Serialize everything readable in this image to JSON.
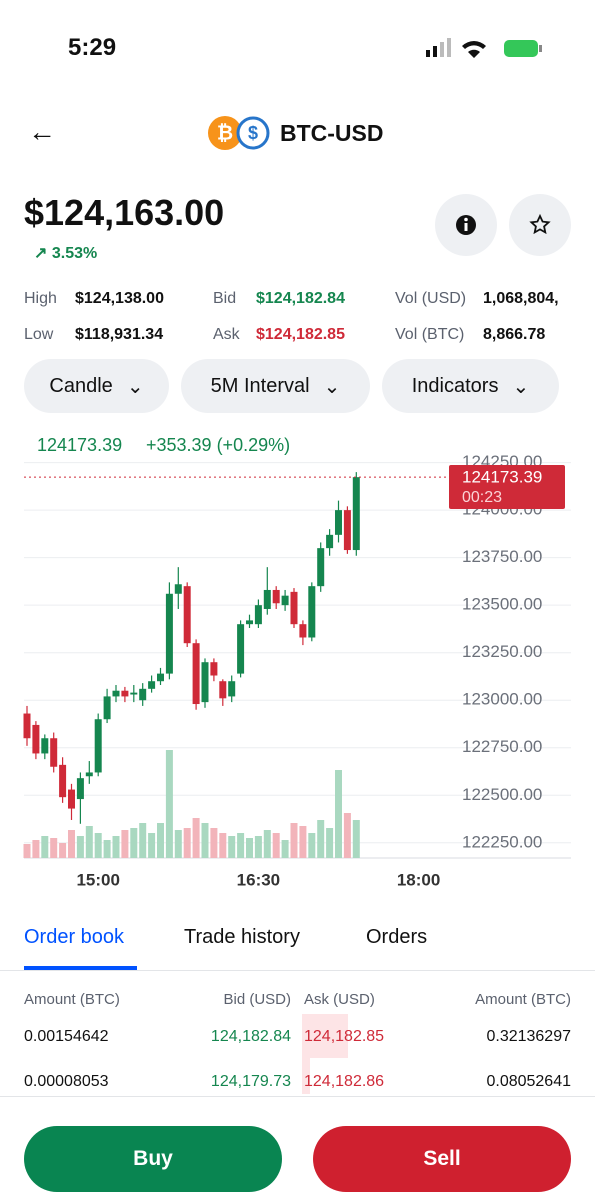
{
  "status": {
    "time": "5:29"
  },
  "header": {
    "pair": "BTC-USD"
  },
  "price": {
    "value": "$124,163.00",
    "change": "3.53%"
  },
  "stats": [
    {
      "label": "High",
      "value": "$124,138.00"
    },
    {
      "label": "Bid",
      "value": "$124,182.84"
    },
    {
      "label": "Vol (USD)",
      "value": "1,068,804,"
    },
    {
      "label": "Low",
      "value": "$118,931.34"
    },
    {
      "label": "Ask",
      "value": "$124,182.85"
    },
    {
      "label": "Vol (BTC)",
      "value": "8,866.78"
    }
  ],
  "controls": [
    "Candle",
    "5M Interval",
    "Indicators"
  ],
  "chart_data": {
    "type": "candlestick",
    "title": "124173.39",
    "subtitle": "+353.39 (+0.29%)",
    "price_label": "124173.39",
    "countdown": "00:23",
    "up_color": "#15864f",
    "down_color": "#cf2a38",
    "up_volume_color": "#a9d8c0",
    "down_volume_color": "#f2b4ba",
    "categories": [
      null,
      null,
      null,
      null,
      null,
      null,
      null,
      null,
      "15:00",
      null,
      null,
      null,
      null,
      null,
      null,
      null,
      null,
      null,
      null,
      null,
      null,
      null,
      null,
      null,
      null,
      null,
      "16:30",
      null,
      null,
      null,
      null,
      null,
      null,
      null,
      null,
      null,
      null,
      null,
      null,
      null,
      null,
      null,
      null,
      null,
      "18:00"
    ],
    "open": [
      122930,
      122870,
      122720,
      122800,
      122660,
      122530,
      122480,
      122600,
      122620,
      122900,
      123020,
      123050,
      123030,
      123000,
      123060,
      123100,
      123140,
      123560,
      123600,
      123300,
      122990,
      123200,
      123100,
      123020,
      123140,
      123400,
      123400,
      123480,
      123580,
      123500,
      123570,
      123400,
      123330,
      123600,
      123800,
      123870,
      124000,
      123790,
      null,
      null,
      null,
      null,
      null,
      null,
      null
    ],
    "high": [
      122970,
      122890,
      122820,
      122830,
      122700,
      122560,
      122620,
      122680,
      122930,
      123060,
      123080,
      123070,
      123080,
      123090,
      123130,
      123170,
      123620,
      123700,
      123620,
      123320,
      123220,
      123220,
      123110,
      123130,
      123420,
      123450,
      123530,
      123700,
      123600,
      123580,
      123590,
      123420,
      123620,
      123830,
      123900,
      124050,
      124020,
      124200,
      null,
      null,
      null,
      null,
      null,
      null,
      null
    ],
    "low": [
      122760,
      122690,
      122690,
      122620,
      122460,
      122370,
      122350,
      122560,
      122600,
      122880,
      122990,
      122990,
      122990,
      122970,
      123040,
      123080,
      123110,
      123480,
      123280,
      122950,
      122960,
      123100,
      122970,
      122990,
      123120,
      123380,
      123380,
      123450,
      123480,
      123470,
      123380,
      123290,
      123310,
      123570,
      123760,
      123830,
      123770,
      123760,
      null,
      null,
      null,
      null,
      null,
      null,
      null
    ],
    "close": [
      122800,
      122720,
      122800,
      122650,
      122490,
      122430,
      122590,
      122620,
      122900,
      123020,
      123050,
      123020,
      123040,
      123060,
      123100,
      123140,
      123560,
      123610,
      123300,
      122980,
      123200,
      123130,
      123010,
      123100,
      123400,
      123420,
      123500,
      123580,
      123510,
      123550,
      123400,
      123330,
      123600,
      123800,
      123870,
      124000,
      123790,
      124173.39,
      null,
      null,
      null,
      null,
      null,
      null,
      null
    ],
    "volume": [
      14,
      18,
      22,
      20,
      15,
      28,
      22,
      32,
      25,
      18,
      22,
      28,
      30,
      35,
      25,
      35,
      108,
      28,
      30,
      40,
      35,
      30,
      25,
      22,
      25,
      20,
      22,
      28,
      25,
      18,
      35,
      32,
      25,
      38,
      30,
      88,
      45,
      38,
      null,
      null,
      null,
      null,
      null,
      null,
      null
    ],
    "ylim": [
      122170,
      124290
    ],
    "yticks": [
      {
        "value": 122250,
        "label": "122250.00"
      },
      {
        "value": 122500,
        "label": "122500.00"
      },
      {
        "value": 122750,
        "label": "122750.00"
      },
      {
        "value": 123000,
        "label": "123000.00"
      },
      {
        "value": 123250,
        "label": "123250.00"
      },
      {
        "value": 123500,
        "label": "123500.00"
      },
      {
        "value": 123750,
        "label": "123750.00"
      },
      {
        "value": 124000,
        "label": "124000.00"
      },
      {
        "value": 124250,
        "label": "124250.00"
      }
    ],
    "grid": true
  },
  "tabs": [
    "Order book",
    "Trade history",
    "Orders"
  ],
  "order_book": {
    "headers": [
      "Amount (BTC)",
      "Bid (USD)",
      "Ask (USD)",
      "Amount (BTC)"
    ],
    "rows": [
      [
        "0.00154642",
        "124,182.84",
        "124,182.85",
        "0.32136297"
      ],
      [
        "0.00008053",
        "124,179.73",
        "124,182.86",
        "0.08052641"
      ]
    ]
  },
  "actions": [
    "Buy",
    "Sell"
  ]
}
